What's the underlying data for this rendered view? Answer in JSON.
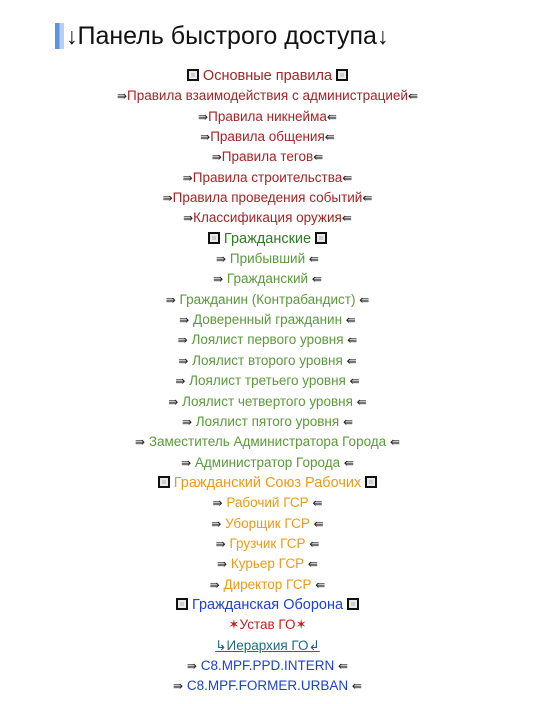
{
  "heading": {
    "left_arrow": "↓",
    "title": "Панель быстрого доступа",
    "right_arrow": "↓"
  },
  "arrows": {
    "left": "⇛",
    "right": "⇚"
  },
  "colors": {
    "rules": "#a52424",
    "civilians_section": "#2f7a25",
    "civilians_items": "#5a9a3a",
    "union": "#ee9a14",
    "defense": "#1b3fd8",
    "star": "#c21f1f",
    "hierarchy_link": "#1f6b80"
  },
  "sections": {
    "rules": {
      "title": "Основные правила",
      "items": [
        "Правила взаимодействия с администрацией",
        "Правила никнейма",
        "Правила общения",
        "Правила тегов",
        "Правила строительства",
        "Правила проведения событий",
        "Классификация оружия"
      ]
    },
    "civilians": {
      "title": "Гражданские",
      "items": [
        "Прибывший",
        "Гражданский",
        "Гражданин (Контрабандист)",
        "Доверенный гражданин",
        "Лоялист первого уровня",
        "Лоялист второго уровня",
        "Лоялист третьего уровня",
        "Лоялист четвертого уровня",
        "Лоялист пятого уровня",
        "Заместитель Администратора Города",
        "Администратор Города"
      ]
    },
    "union": {
      "title": "Гражданский Союз Рабочих",
      "items": [
        "Рабочий ГСР",
        "Уборщик ГСР",
        "Грузчик ГСР",
        "Курьер ГСР",
        "Директор ГСР"
      ]
    },
    "defense": {
      "title": "Гражданская Оборона",
      "charter": {
        "star": "✶",
        "text": "Устав ГО"
      },
      "hierarchy": {
        "left": "↳",
        "text": "Иерархия ГО",
        "right": "↲"
      },
      "items": [
        "C8.MPF.PPD.INTERN",
        "C8.MPF.FORMER.URBAN"
      ]
    }
  }
}
